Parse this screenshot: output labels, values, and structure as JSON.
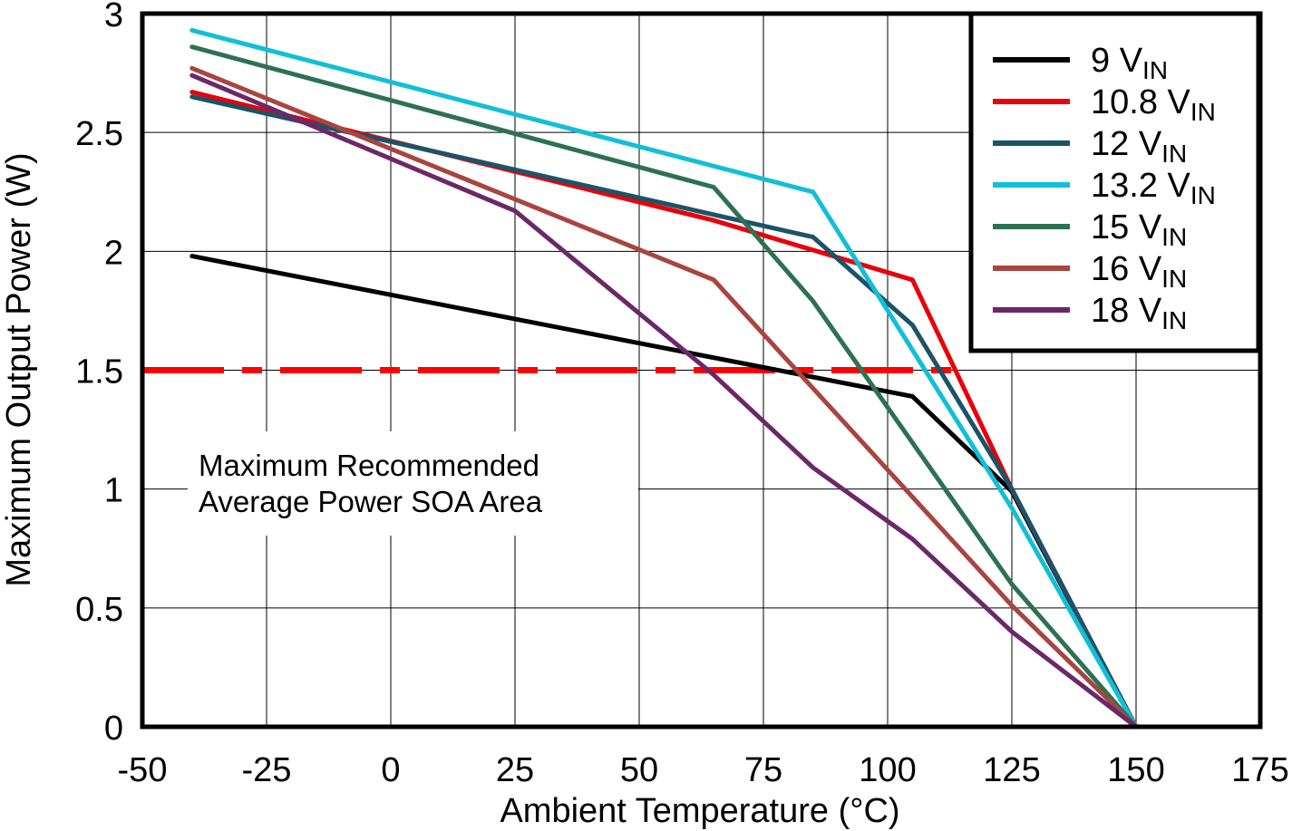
{
  "chart_data": {
    "type": "line",
    "xlabel": "Ambient Temperature (°C)",
    "ylabel": "Maximum Output Power (W)",
    "xlim": [
      -50,
      175
    ],
    "ylim": [
      0,
      3
    ],
    "xticks": [
      -50,
      -25,
      0,
      25,
      50,
      75,
      100,
      125,
      150,
      175
    ],
    "yticks": [
      0,
      0.5,
      1,
      1.5,
      2,
      2.5,
      3
    ],
    "xtick_labels": [
      "-50",
      "-25",
      "0",
      "25",
      "50",
      "75",
      "100",
      "125",
      "150",
      "175"
    ],
    "ytick_labels": [
      "0",
      "0.5",
      "1",
      "1.5",
      "2",
      "2.5",
      "3"
    ],
    "grid": true,
    "legend_position": "top-right",
    "series": [
      {
        "name": "9 V",
        "subscript": "IN",
        "color": "#000000",
        "x": [
          -40,
          105,
          125,
          150
        ],
        "y": [
          1.98,
          1.39,
          0.99,
          0
        ]
      },
      {
        "name": "10.8 V",
        "subscript": "IN",
        "color": "#e8000b",
        "x": [
          -40,
          65,
          105,
          125,
          150
        ],
        "y": [
          2.67,
          2.13,
          1.88,
          1.0,
          0
        ]
      },
      {
        "name": "12 V",
        "subscript": "IN",
        "color": "#1c5369",
        "x": [
          -40,
          85,
          105,
          125,
          150
        ],
        "y": [
          2.65,
          2.06,
          1.69,
          1.0,
          0
        ]
      },
      {
        "name": "13.2 V",
        "subscript": "IN",
        "color": "#12bfd6",
        "x": [
          -40,
          85,
          125,
          150
        ],
        "y": [
          2.93,
          2.25,
          0.92,
          0
        ]
      },
      {
        "name": "15 V",
        "subscript": "IN",
        "color": "#2e7152",
        "x": [
          -40,
          65,
          85,
          125,
          150
        ],
        "y": [
          2.86,
          2.27,
          1.79,
          0.6,
          0
        ]
      },
      {
        "name": "16 V",
        "subscript": "IN",
        "color": "#a8453f",
        "x": [
          -40,
          65,
          125,
          150
        ],
        "y": [
          2.77,
          1.88,
          0.51,
          0
        ]
      },
      {
        "name": "18 V",
        "subscript": "IN",
        "color": "#6b2868",
        "x": [
          -40,
          25,
          65,
          85,
          105,
          125,
          150
        ],
        "y": [
          2.74,
          2.17,
          1.48,
          1.09,
          0.79,
          0.4,
          0
        ]
      }
    ],
    "reference_line": {
      "y": 1.5,
      "x_start": -50,
      "x_end": 115,
      "color": "#ff0000",
      "style": "dash-dot"
    },
    "annotation": {
      "lines": [
        "Maximum Recommended",
        "Average Power SOA Area"
      ]
    }
  }
}
